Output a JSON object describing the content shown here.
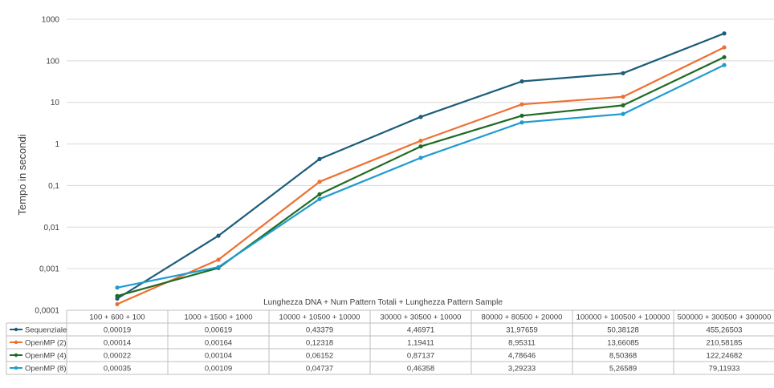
{
  "chart_data": {
    "type": "line",
    "title": "",
    "ylabel": "Tempo in secondi",
    "xlabel": "Lunghezza DNA + Num Pattern Totali + Lunghezza Pattern Sample",
    "yscale": "log",
    "ylim": [
      0.0001,
      1000
    ],
    "yticks": [
      "0,0001",
      "0,001",
      "0,01",
      "0,1",
      "1",
      "10",
      "100",
      "1000"
    ],
    "grid": true,
    "legend": "data table",
    "categories": [
      "100 + 600 + 100",
      "1000 + 1500 + 1000",
      "10000 + 10500 + 10000",
      "30000 + 30500 + 10000",
      "80000 + 80500 + 20000",
      "100000 + 100500 + 100000",
      "500000 + 300500 + 300000"
    ],
    "series": [
      {
        "name": "Sequenziale",
        "color": "#1d5c7a",
        "values": [
          0.00019,
          0.00619,
          0.43379,
          4.46971,
          31.97659,
          50.38128,
          455.26503
        ],
        "labels": [
          "0,00019",
          "0,00619",
          "0,43379",
          "4,46971",
          "31,97659",
          "50,38128",
          "455,26503"
        ]
      },
      {
        "name": "OpenMP (2)",
        "color": "#ed7031",
        "values": [
          0.00014,
          0.00164,
          0.12318,
          1.19411,
          8.95311,
          13.66085,
          210.58185
        ],
        "labels": [
          "0,00014",
          "0,00164",
          "0,12318",
          "1,19411",
          "8,95311",
          "13,66085",
          "210,58185"
        ]
      },
      {
        "name": "OpenMP (4)",
        "color": "#1f6b23",
        "values": [
          0.00022,
          0.00104,
          0.06152,
          0.87137,
          4.78646,
          8.50368,
          122.24682
        ],
        "labels": [
          "0,00022",
          "0,00104",
          "0,06152",
          "0,87137",
          "4,78646",
          "8,50368",
          "122,24682"
        ]
      },
      {
        "name": "OpenMP (8)",
        "color": "#1f9bcf",
        "values": [
          0.00035,
          0.00109,
          0.04737,
          0.46358,
          3.29233,
          5.26589,
          79.11933
        ],
        "labels": [
          "0,00035",
          "0,00109",
          "0,04737",
          "0,46358",
          "3,29233",
          "5,26589",
          "79,11933"
        ]
      }
    ]
  }
}
